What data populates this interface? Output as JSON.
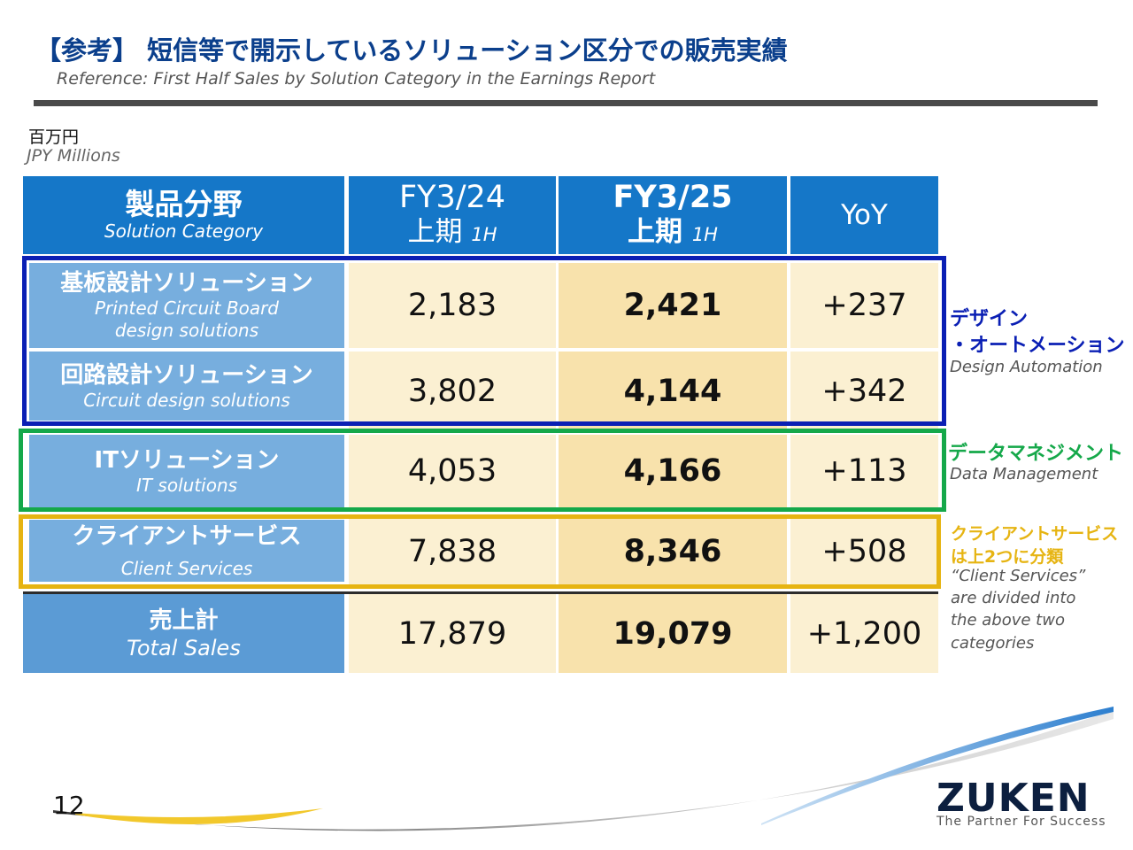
{
  "header": {
    "title": "【参考】 短信等で開示しているソリューション区分での販売実績",
    "subtitle": "Reference: First Half Sales by Solution Category in the Earnings Report"
  },
  "unit": {
    "ja": "百万円",
    "en": "JPY Millions"
  },
  "table": {
    "columns": {
      "category_ja": "製品分野",
      "category_en": "Solution Category",
      "prev_fy": "FY3/24",
      "prev_half": "上期",
      "prev_half_en": "1H",
      "cur_fy": "FY3/25",
      "cur_half": "上期",
      "cur_half_en": "1H",
      "yoy": "YoY"
    },
    "rows": [
      {
        "ja": "基板設計ソリューション",
        "en1": "Printed Circuit Board",
        "en2": "design solutions",
        "prev": "2,183",
        "cur": "2,421",
        "yoy": "+237"
      },
      {
        "ja": "回路設計ソリューション",
        "en1": "Circuit design solutions",
        "prev": "3,802",
        "cur": "4,144",
        "yoy": "+342"
      },
      {
        "ja": "ITソリューション",
        "en1": "IT solutions",
        "prev": "4,053",
        "cur": "4,166",
        "yoy": "+113"
      },
      {
        "ja": "クライアントサービス",
        "en1": "Client Services",
        "prev": "7,838",
        "cur": "8,346",
        "yoy": "+508"
      }
    ],
    "total": {
      "ja": "売上計",
      "en": "Total Sales",
      "prev": "17,879",
      "cur": "19,079",
      "yoy": "+1,200"
    }
  },
  "groups": {
    "design": {
      "ja1": "デザイン",
      "ja2": "・オートメーション",
      "en": "Design Automation",
      "color": "#0a1fb4"
    },
    "data": {
      "ja": "データマネジメント",
      "en": "Data Management",
      "color": "#15a84a"
    },
    "client": {
      "ja1": "クライアントサービス",
      "ja2": "は上2つに分類",
      "en1": "“Client Services”",
      "en2": "are divided into",
      "en3": "the above two",
      "en4": "categories",
      "color": "#e6b412"
    }
  },
  "footer": {
    "page": "12",
    "logo": "ZUKEN",
    "tagline": "The Partner For Success"
  }
}
